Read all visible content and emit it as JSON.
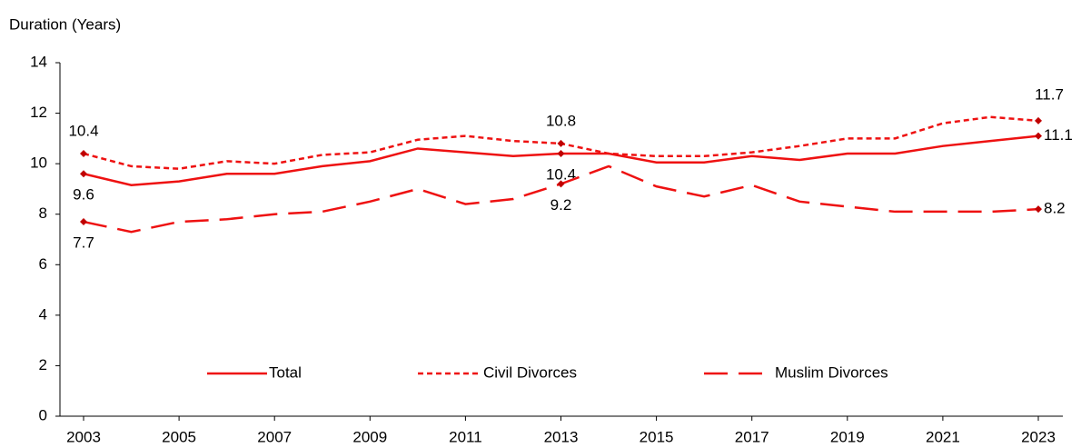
{
  "chart_data": {
    "type": "line",
    "y_axis_label": "Duration (Years)",
    "x": [
      2003,
      2004,
      2005,
      2006,
      2007,
      2008,
      2009,
      2010,
      2011,
      2012,
      2013,
      2014,
      2015,
      2016,
      2017,
      2018,
      2019,
      2020,
      2021,
      2022,
      2023
    ],
    "series": [
      {
        "name": "Total",
        "color": "#ee1111",
        "dash": "solid",
        "values": [
          9.6,
          9.15,
          9.3,
          9.6,
          9.6,
          9.9,
          10.1,
          10.6,
          10.45,
          10.3,
          10.4,
          10.4,
          10.05,
          10.05,
          10.3,
          10.15,
          10.4,
          10.4,
          10.7,
          10.9,
          11.1
        ]
      },
      {
        "name": "Civil Divorces",
        "color": "#ee1111",
        "dash": "dotted",
        "values": [
          10.4,
          9.9,
          9.8,
          10.1,
          10.0,
          10.35,
          10.45,
          10.95,
          11.1,
          10.9,
          10.8,
          10.4,
          10.3,
          10.3,
          10.45,
          10.7,
          11.0,
          11.0,
          11.6,
          11.85,
          11.7
        ]
      },
      {
        "name": "Muslim Divorces",
        "color": "#ee1111",
        "dash": "dashed",
        "values": [
          7.7,
          7.3,
          7.7,
          7.8,
          8.0,
          8.1,
          8.5,
          9.0,
          8.4,
          8.6,
          9.2,
          9.9,
          9.1,
          8.7,
          9.15,
          8.5,
          8.3,
          8.1,
          8.1,
          8.1,
          8.2
        ]
      }
    ],
    "xlim": [
      2003,
      2023
    ],
    "xticks": [
      2003,
      2005,
      2007,
      2009,
      2011,
      2013,
      2015,
      2017,
      2019,
      2021,
      2023
    ],
    "ylim": [
      0,
      14
    ],
    "yticks": [
      0,
      2,
      4,
      6,
      8,
      10,
      12,
      14
    ],
    "grid": false,
    "legend": "bottom"
  }
}
